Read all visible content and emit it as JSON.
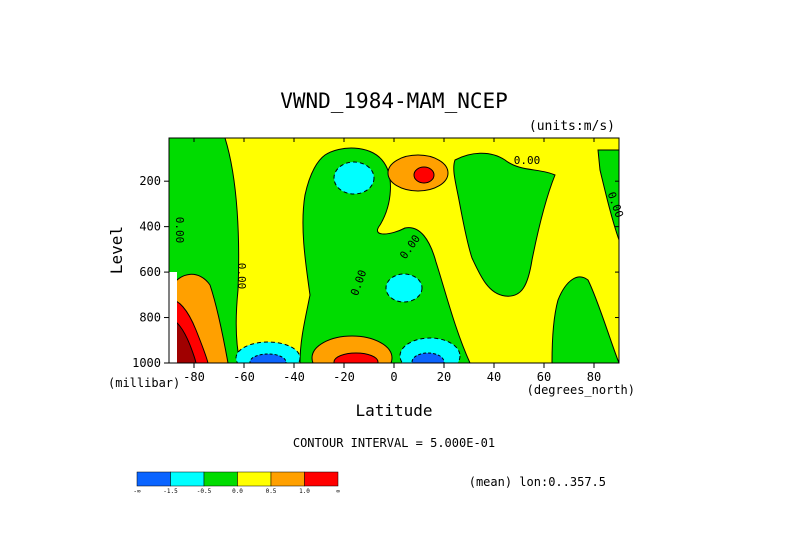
{
  "chart_data": {
    "type": "heatmap",
    "title": "VWND_1984-MAM_NCEP",
    "units_label": "(units:m/s)",
    "xlabel": "Latitude",
    "xunits": "(degrees_north)",
    "ylabel": "Level",
    "yunits": "(millibar)",
    "xlim": [
      -90,
      90
    ],
    "ylim": [
      1000,
      10
    ],
    "x_ticks": [
      -80,
      -60,
      -40,
      -20,
      0,
      20,
      40,
      60,
      80
    ],
    "x_tick_labels": [
      "-80",
      "-60",
      "-40",
      "-20",
      "0",
      "20",
      "40",
      "60",
      "80"
    ],
    "y_ticks": [
      200,
      400,
      600,
      800,
      1000
    ],
    "y_tick_labels": [
      "200",
      "400",
      "600",
      "800",
      "1000"
    ],
    "contour_interval_text": "CONTOUR INTERVAL = 5.000E-01",
    "mean_text": "(mean) lon:0..357.5",
    "contour_labels": [
      "0.00"
    ],
    "colorbar": {
      "colors": [
        "#0a64ff",
        "#00ffff",
        "#00dc00",
        "#ffff00",
        "#ffa000",
        "#ff0000"
      ],
      "labels": [
        "-∞",
        "-1.5",
        "-0.5",
        "0.0",
        "0.5",
        "1.0",
        "∞"
      ]
    }
  }
}
